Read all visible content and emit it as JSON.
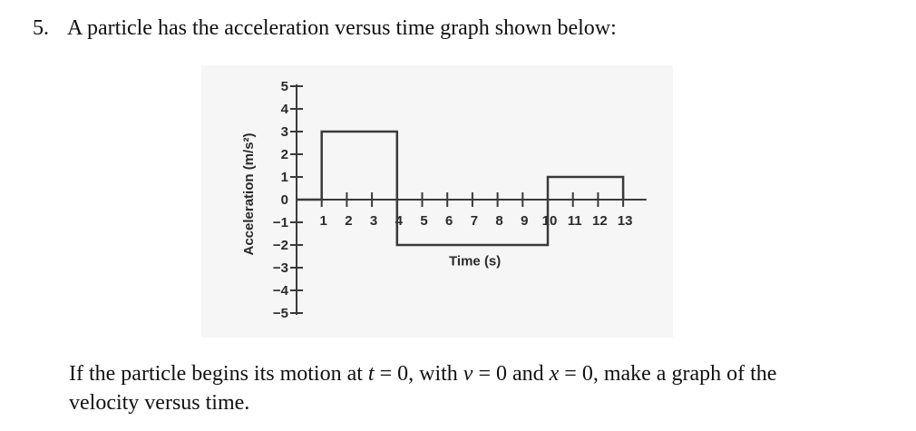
{
  "question": {
    "number": "5.",
    "title": "A particle has the acceleration versus time graph shown below:",
    "prompt_part1": "If the particle begins its motion at ",
    "var_t": "t",
    "eq1": " = 0, with ",
    "var_v": "v",
    "eq2": " = 0 and ",
    "var_x": "x",
    "eq3": " = 0, make a graph of the",
    "prompt_line2": "velocity versus time."
  },
  "chart_data": {
    "type": "line",
    "title": "",
    "xlabel": "Time (s)",
    "ylabel": "Acceleration (m/s²)",
    "x_ticks": [
      1,
      2,
      3,
      4,
      5,
      6,
      7,
      8,
      9,
      10,
      11,
      12,
      13
    ],
    "y_ticks": [
      5,
      4,
      3,
      2,
      1,
      0,
      -1,
      -2,
      -3,
      -4,
      -5
    ],
    "xlim": [
      0,
      14
    ],
    "ylim": [
      -5,
      5
    ],
    "grid": false,
    "legend": null,
    "series": [
      {
        "name": "acceleration",
        "style": "step",
        "segments": [
          {
            "t_start": 0,
            "t_end": 1,
            "a": 0
          },
          {
            "t_start": 1,
            "t_end": 4,
            "a": 3
          },
          {
            "t_start": 4,
            "t_end": 10,
            "a": -2
          },
          {
            "t_start": 10,
            "t_end": 13,
            "a": 1
          }
        ],
        "points": [
          [
            0,
            0
          ],
          [
            1,
            0
          ],
          [
            1,
            3
          ],
          [
            4,
            3
          ],
          [
            4,
            -2
          ],
          [
            10,
            -2
          ],
          [
            10,
            1
          ],
          [
            13,
            1
          ],
          [
            13,
            0
          ]
        ]
      }
    ]
  }
}
